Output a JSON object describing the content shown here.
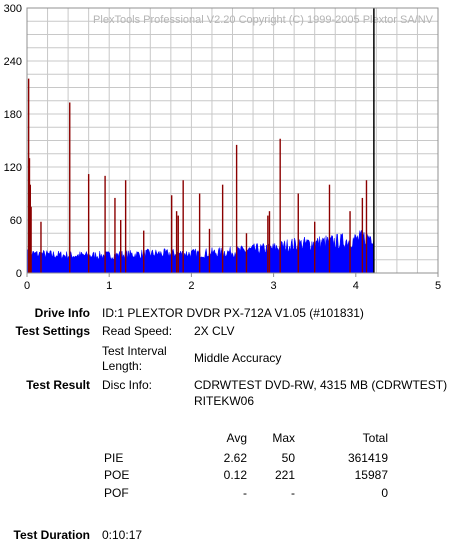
{
  "watermark": "PlexTools Professional V2.20 Copyright (C) 1999-2005 Plextor SA/NV",
  "chart_data": {
    "type": "bar",
    "title": "",
    "xlabel": "",
    "ylabel": "",
    "xlim": [
      0,
      5
    ],
    "ylim": [
      0,
      300
    ],
    "x_ticks": [
      "0",
      "1",
      "2",
      "3",
      "4",
      "5"
    ],
    "y_ticks": [
      "0",
      "60",
      "120",
      "180",
      "240",
      "300"
    ],
    "grid": true,
    "data_end_x": 4.22,
    "series": [
      {
        "color": "#0000ff",
        "description_values": "baseline PIE level",
        "x": [
          0,
          0.5,
          1.0,
          1.5,
          2.0,
          2.5,
          2.8,
          3.0,
          3.2,
          3.5,
          3.8,
          4.0,
          4.2
        ],
        "values": [
          22,
          20,
          20,
          22,
          22,
          24,
          27,
          28,
          32,
          34,
          36,
          38,
          42
        ]
      },
      {
        "color": "#8b0000",
        "x": [
          0.02,
          0.03,
          0.04,
          0.05,
          0.17,
          0.52,
          0.75,
          0.95,
          1.07,
          1.14,
          1.2,
          1.42,
          1.76,
          1.82,
          1.84,
          1.9,
          2.1,
          2.22,
          2.38,
          2.55,
          2.67,
          2.93,
          2.95,
          3.08,
          3.3,
          3.5,
          3.68,
          3.93,
          4.08,
          4.13
        ],
        "values": [
          220,
          130,
          100,
          75,
          58,
          193,
          112,
          110,
          85,
          60,
          105,
          48,
          88,
          70,
          65,
          105,
          90,
          50,
          100,
          145,
          45,
          65,
          70,
          152,
          90,
          58,
          100,
          70,
          85,
          105
        ]
      }
    ]
  },
  "drive_info": {
    "label": "Drive Info",
    "value": "ID:1 PLEXTOR DVDR PX-712A V1.05 (#101831)"
  },
  "test_settings": {
    "label": "Test Settings",
    "read_speed_label": "Read Speed:",
    "read_speed_value": "2X CLV",
    "interval_label_1": "Test Interval",
    "interval_label_2": "Length:",
    "interval_value": "Middle Accuracy"
  },
  "test_result": {
    "label": "Test Result",
    "disc_info_label": "Disc Info:",
    "disc_info_line1": "CDRWTEST DVD-RW, 4315 MB (CDRWTEST)",
    "disc_info_line2": "RITEKW06"
  },
  "stats": {
    "headers": {
      "avg": "Avg",
      "max": "Max",
      "total": "Total"
    },
    "rows": [
      {
        "name": "PIE",
        "avg": "2.62",
        "max": "50",
        "total": "361419"
      },
      {
        "name": "POE",
        "avg": "0.12",
        "max": "221",
        "total": "15987"
      },
      {
        "name": "POF",
        "avg": "-",
        "max": "-",
        "total": "0"
      }
    ]
  },
  "test_duration": {
    "label": "Test Duration",
    "value": "0:10:17"
  }
}
